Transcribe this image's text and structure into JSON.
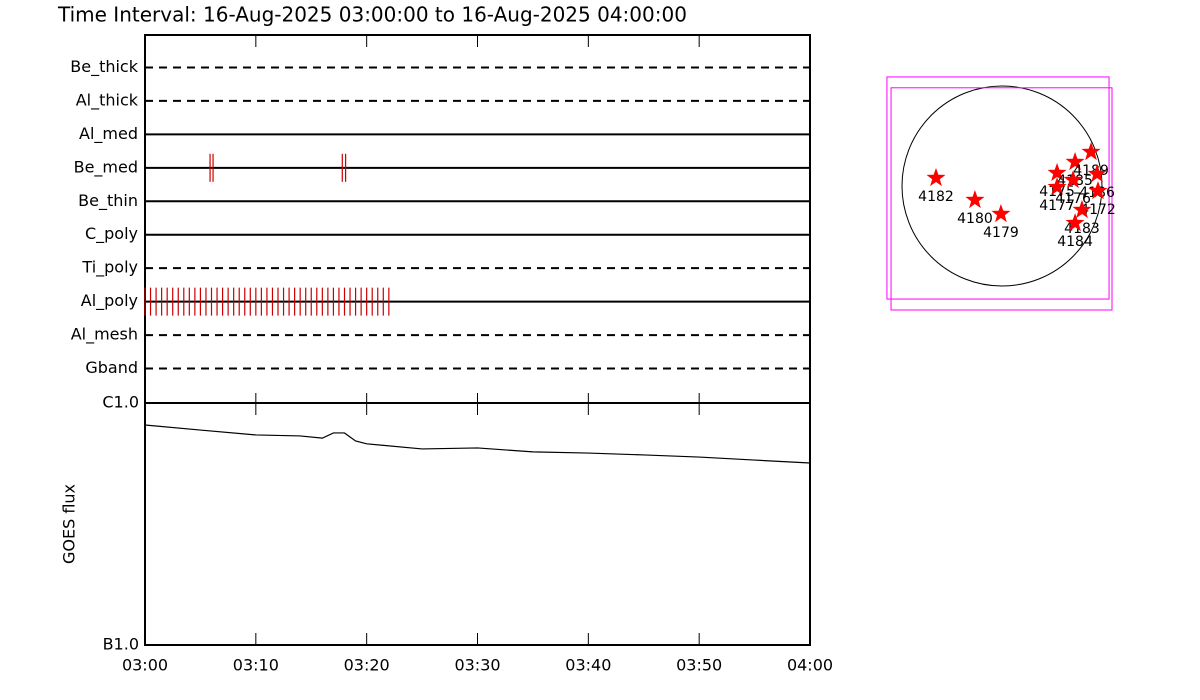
{
  "title": "Time Interval: 16-Aug-2025 03:00:00 to 16-Aug-2025 04:00:00",
  "chart_data": [
    {
      "type": "timeline",
      "categories": [
        "Be_thick",
        "Al_thick",
        "Al_med",
        "Be_med",
        "Be_thin",
        "C_poly",
        "Ti_poly",
        "Al_poly",
        "Al_mesh",
        "Gband"
      ],
      "line_styles": [
        "dashed",
        "dashed",
        "solid",
        "solid",
        "solid",
        "solid",
        "dashed",
        "solid",
        "dashed",
        "dashed"
      ],
      "xlim": [
        0,
        60
      ],
      "color": "#cc0000",
      "events": [
        {
          "filter": "Be_med",
          "times": [
            5.87,
            6.14,
            17.8,
            18.1
          ]
        },
        {
          "filter": "Al_poly",
          "times": [
            0,
            0.5,
            1,
            1.5,
            2,
            2.5,
            3,
            3.5,
            4,
            4.5,
            5,
            5.5,
            6,
            6.5,
            7,
            7.5,
            8,
            8.5,
            9,
            9.5,
            10,
            10.5,
            11,
            11.5,
            12,
            12.5,
            13,
            13.5,
            14,
            14.5,
            15,
            15.5,
            16,
            16.5,
            17,
            17.5,
            18,
            18.5,
            19,
            19.5,
            20,
            20.5,
            21,
            21.5,
            22
          ]
        }
      ]
    },
    {
      "type": "line",
      "ylabel": "GOES flux",
      "log_y": true,
      "ylim": [
        1e-07,
        1e-06
      ],
      "yticks": [
        {
          "value": 1e-06,
          "label": "C1.0"
        },
        {
          "value": 1e-07,
          "label": "B1.0"
        }
      ],
      "xlim": [
        0,
        60
      ],
      "xticks": [
        {
          "value": 0,
          "label": "03:00"
        },
        {
          "value": 10,
          "label": "03:10"
        },
        {
          "value": 20,
          "label": "03:20"
        },
        {
          "value": 30,
          "label": "03:30"
        },
        {
          "value": 40,
          "label": "03:40"
        },
        {
          "value": 50,
          "label": "03:50"
        },
        {
          "value": 60,
          "label": "04:00"
        }
      ],
      "color": "#000000",
      "x": [
        0,
        5,
        10,
        14,
        16,
        17,
        18,
        19,
        20,
        25,
        30,
        35,
        40,
        45,
        50,
        55,
        60
      ],
      "values": [
        8.11e-07,
        7.73e-07,
        7.38e-07,
        7.31e-07,
        7.16e-07,
        7.52e-07,
        7.52e-07,
        6.97e-07,
        6.78e-07,
        6.46e-07,
        6.52e-07,
        6.28e-07,
        6.21e-07,
        6.1e-07,
        5.98e-07,
        5.81e-07,
        5.65e-07
      ]
    },
    {
      "type": "map",
      "radius": 950,
      "color": "#ff0000",
      "box_color": "#ff00ff",
      "boxes": [
        {
          "x": [
            -1093,
            1017
          ],
          "y": [
            -1074,
            1036
          ]
        },
        {
          "x": [
            -1054,
            1045
          ],
          "y": [
            -1178,
            933
          ]
        }
      ],
      "labels": [
        "4182",
        "4180",
        "4179",
        "4175",
        "4185",
        "4189",
        "4186",
        "4172",
        "4183",
        "4184",
        "4177",
        "4176"
      ],
      "x": [
        -627,
        -257,
        -10,
        523,
        694,
        846,
        903,
        912,
        760,
        694,
        523,
        675
      ],
      "y": [
        76,
        -133,
        -266,
        124,
        228,
        323,
        114,
        -48,
        -228,
        -352,
        -10,
        57
      ]
    }
  ]
}
